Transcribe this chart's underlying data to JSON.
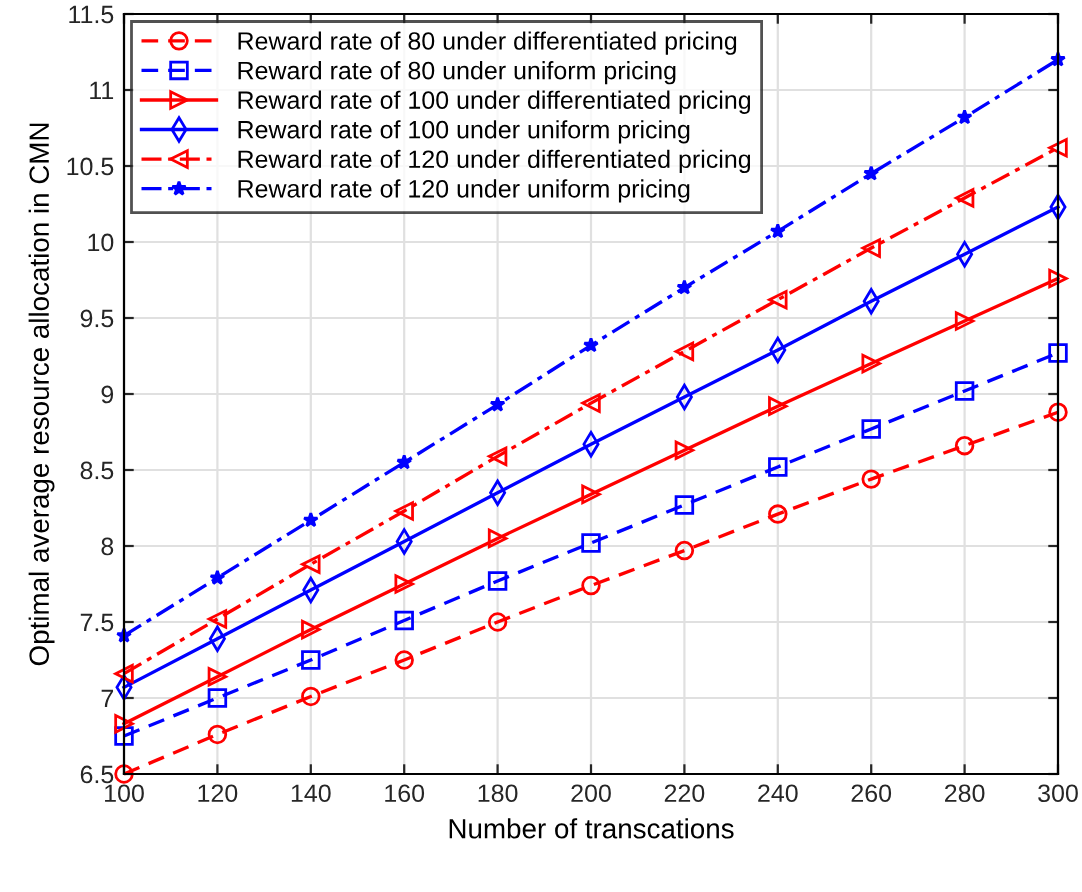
{
  "chart_data": {
    "type": "line",
    "xlabel": "Number of transcations",
    "ylabel": "Optimal average resource allocation in CMN",
    "x": [
      100,
      120,
      140,
      160,
      180,
      200,
      220,
      240,
      260,
      280,
      300
    ],
    "xlim": [
      100,
      300
    ],
    "xticks": [
      100,
      120,
      140,
      160,
      180,
      200,
      220,
      240,
      260,
      280,
      300
    ],
    "ylim": [
      6.5,
      11.5
    ],
    "yticks": [
      6.5,
      7,
      7.5,
      8,
      8.5,
      9,
      9.5,
      10,
      10.5,
      11,
      11.5
    ],
    "grid": true,
    "legend": "top left",
    "series": [
      {
        "name": "Reward rate of 80 under differentiated pricing",
        "color": "#ff0000",
        "marker": "circle",
        "line_style": "dashed",
        "values": [
          6.5,
          6.76,
          7.01,
          7.25,
          7.5,
          7.74,
          7.97,
          8.21,
          8.44,
          8.66,
          8.88
        ]
      },
      {
        "name": "Reward rate of 80 under uniform pricing",
        "color": "#0000ff",
        "marker": "square",
        "line_style": "dashed",
        "values": [
          6.75,
          7.0,
          7.25,
          7.51,
          7.77,
          8.02,
          8.27,
          8.52,
          8.77,
          9.02,
          9.27
        ]
      },
      {
        "name": "Reward rate of 100 under differentiated pricing",
        "color": "#ff0000",
        "marker": "triangle_right",
        "line_style": "solid",
        "values": [
          6.83,
          7.14,
          7.45,
          7.75,
          8.05,
          8.34,
          8.63,
          8.92,
          9.2,
          9.48,
          9.76
        ]
      },
      {
        "name": "Reward rate of 100 under uniform pricing",
        "color": "#0000ff",
        "marker": "diamond",
        "line_style": "solid",
        "values": [
          7.07,
          7.39,
          7.71,
          8.03,
          8.35,
          8.67,
          8.98,
          9.29,
          9.61,
          9.92,
          10.23
        ]
      },
      {
        "name": "Reward rate of 120 under differentiated pricing",
        "color": "#ff0000",
        "marker": "triangle_left",
        "line_style": "dashdot",
        "values": [
          7.16,
          7.52,
          7.88,
          8.23,
          8.59,
          8.94,
          9.28,
          9.62,
          9.96,
          10.29,
          10.62
        ]
      },
      {
        "name": "Reward rate of 120 under uniform pricing",
        "color": "#0000ff",
        "marker": "star",
        "line_style": "dashdot",
        "values": [
          7.41,
          7.79,
          8.17,
          8.55,
          8.93,
          9.32,
          9.7,
          10.07,
          10.45,
          10.82,
          11.2
        ]
      }
    ]
  }
}
